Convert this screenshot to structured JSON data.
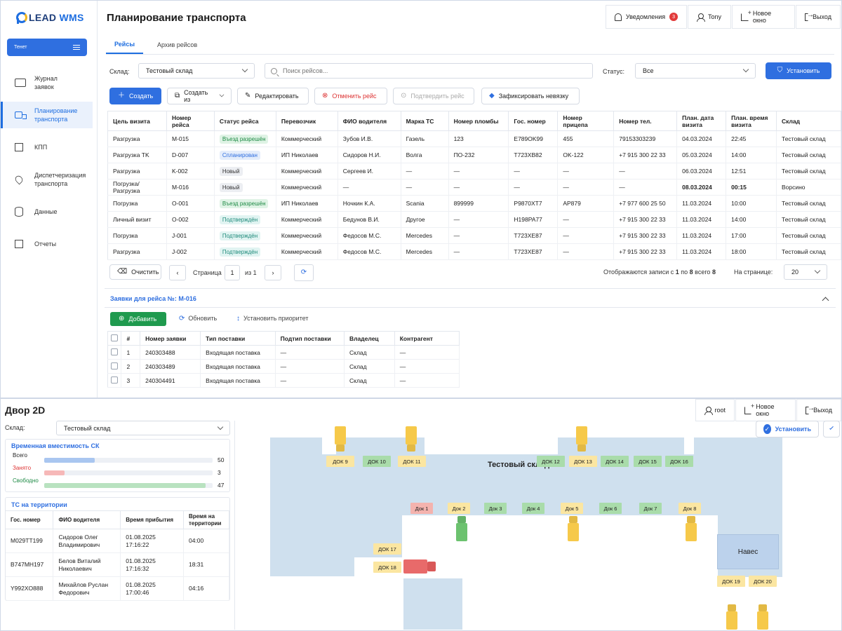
{
  "top": {
    "logo": {
      "part1": "LEAD ",
      "part2": "WMS"
    },
    "tenant": "Тенет",
    "nav": [
      {
        "label1": "Журнал",
        "label2": "заявок",
        "icon": "folder-icon"
      },
      {
        "label1": "Планирование",
        "label2": "транспорта",
        "icon": "truck-icon"
      },
      {
        "label1": "КПП",
        "label2": "",
        "icon": "gate-icon"
      },
      {
        "label1": "Диспетчеризация",
        "label2": "транспорта",
        "icon": "map-pin-icon"
      },
      {
        "label1": "Данные",
        "label2": "",
        "icon": "database-icon"
      },
      {
        "label1": "Отчеты",
        "label2": "",
        "icon": "report-icon"
      }
    ],
    "title": "Планирование транспорта",
    "header": {
      "notifications": "Уведомления",
      "notif_count": "3",
      "user": "Tony",
      "new_window": "Новое окно",
      "exit": "Выход"
    },
    "tabs": [
      "Рейсы",
      "Архив рейсов"
    ],
    "filters": {
      "warehouse_label": "Склад:",
      "warehouse": "Тестовый склад",
      "search_placeholder": "Поиск рейсов...",
      "status_label": "Статус:",
      "status": "Все",
      "apply": "Установить"
    },
    "toolbar": {
      "create": "Создать",
      "create_from": "Создать из",
      "edit": "Редактировать",
      "cancel": "Отменить рейс",
      "confirm": "Подтвердить рейс",
      "fix": "Зафиксировать невязку"
    },
    "trips": {
      "columns": [
        "Цель визита",
        "Номер рейса",
        "Статус рейса",
        "Перевозчик",
        "ФИО водителя",
        "Марка ТС",
        "Номер пломбы",
        "Гос. номер",
        "Номер прицепа",
        "Номер тел.",
        "План. дата визита",
        "План. время визита",
        "Склад"
      ],
      "rows": [
        [
          "Разгрузка",
          "M-015",
          "Въезд разрешён",
          "Коммерческий",
          "Зубов И.В.",
          "Газель",
          "123",
          "E789OK99",
          "455",
          "79153303239",
          "04.03.2024",
          "22:45",
          "Тестовый склад"
        ],
        [
          "Разгрузка TK",
          "D-007",
          "Спланирован",
          "ИП Николаев",
          "Сидоров Н.И.",
          "Волга",
          "ПО-232",
          "T723XB82",
          "OK-122",
          "+7 915 300 22 33",
          "05.03.2024",
          "14:00",
          "Тестовый склад"
        ],
        [
          "Разгрузка",
          "K-002",
          "Новый",
          "Коммерческий",
          "Сергеев И.",
          "—",
          "—",
          "—",
          "—",
          "—",
          "06.03.2024",
          "12:51",
          "Тестовый склад"
        ],
        [
          "Погрузка/ Разгрузка",
          "M-016",
          "Новый",
          "Коммерческий",
          "—",
          "—",
          "—",
          "—",
          "—",
          "—",
          "08.03.2024",
          "00:15",
          "Ворсино"
        ],
        [
          "Погрузка",
          "O-001",
          "Въезд разрешён",
          "ИП Николаев",
          "Ночкин К.А.",
          "Scania",
          "899999",
          "P9870XT7",
          "AP879",
          "+7 977 600 25 50",
          "11.03.2024",
          "10:00",
          "Тестовый склад"
        ],
        [
          "Личный визит",
          "O-002",
          "Подтверждён",
          "Коммерческий",
          "Бедунов В.И.",
          "Другое",
          "—",
          "H198PA77",
          "—",
          "+7 915 300 22 33",
          "11.03.2024",
          "14:00",
          "Тестовый склад"
        ],
        [
          "Погрузка",
          "J-001",
          "Подтверждён",
          "Коммерческий",
          "Федосов М.С.",
          "Mercedes",
          "—",
          "T723XE87",
          "—",
          "+7 915 300 22 33",
          "11.03.2024",
          "17:00",
          "Тестовый склад"
        ],
        [
          "Разгрузка",
          "J-002",
          "Подтверждён",
          "Коммерческий",
          "Федосов М.С.",
          "Mercedes",
          "—",
          "T723XE87",
          "—",
          "+7 915 300 22 33",
          "11.03.2024",
          "18:00",
          "Тестовый склад"
        ]
      ]
    },
    "pager": {
      "clear": "Очистить",
      "page_label": "Страница",
      "page": "1",
      "of": "из 1",
      "summary_a": "Отображаются записи с ",
      "from": "1",
      "summary_b": " по ",
      "to": "8",
      "summary_c": " всего ",
      "total": "8",
      "per_page_label": "На странице:",
      "per_page": "20"
    },
    "requests": {
      "title": "Заявки для рейса №: M-016",
      "add": "Добавить",
      "refresh": "Обновить",
      "priority": "Установить приоритет",
      "columns": [
        "#",
        "Номер заявки",
        "Тип поставки",
        "Подтип поставки",
        "Владелец",
        "Контрагент"
      ],
      "rows": [
        [
          "1",
          "240303488",
          "Входящая поставка",
          "—",
          "Склад",
          "—"
        ],
        [
          "2",
          "240303489",
          "Входящая поставка",
          "—",
          "Склад",
          "—"
        ],
        [
          "3",
          "240304491",
          "Входящая поставка",
          "—",
          "Склад",
          "—"
        ]
      ]
    }
  },
  "bottom": {
    "title": "Двор 2D",
    "header": {
      "user": "root",
      "new_window": "Новое окно",
      "exit": "Выход"
    },
    "warehouse_label": "Склад:",
    "warehouse": "Тестовый склад",
    "capacity": {
      "title": "Временная вместимость СК",
      "rows": [
        {
          "label": "Всего",
          "value": "50",
          "fraction": 0.3,
          "color": "#a9c6f0",
          "label_color": "#222"
        },
        {
          "label": "Занято",
          "value": "3",
          "fraction": 0.12,
          "color": "#f6b8b8",
          "label_color": "#d33"
        },
        {
          "label": "Свободно",
          "value": "47",
          "fraction": 0.96,
          "color": "#b9e2c0",
          "label_color": "#1e8a45"
        }
      ]
    },
    "vehicles": {
      "title": "ТС на территории",
      "columns": [
        "Гос. номер",
        "ФИО водителя",
        "Время прибытия",
        "Время на территории"
      ],
      "rows": [
        [
          "M029TT199",
          "Сидоров Олег Владимирович",
          "01.08.2025 17:16:22",
          "04:00"
        ],
        [
          "B747MH197",
          "Белов Виталий Николаевич",
          "01.08.2025 17:16:32",
          "18:31"
        ],
        [
          "Y992XO888",
          "Михайлов Руслан Федорович",
          "01.08.2025 17:00:46",
          "04:16"
        ]
      ]
    },
    "apply": "Установить",
    "map": {
      "warehouse_name": "Тестовый склад",
      "canopy": "Навес",
      "docks": [
        {
          "label": "ДОК 9",
          "state": "yellow"
        },
        {
          "label": "ДОК 10",
          "state": "green"
        },
        {
          "label": "ДОК 11",
          "state": "yellow"
        },
        {
          "label": "ДОК 12",
          "state": "green"
        },
        {
          "label": "ДОК 13",
          "state": "yellow"
        },
        {
          "label": "ДОК 14",
          "state": "green"
        },
        {
          "label": "ДОК 15",
          "state": "green"
        },
        {
          "label": "ДОК 16",
          "state": "green"
        },
        {
          "label": "Док 1",
          "state": "red"
        },
        {
          "label": "Док 2",
          "state": "yellow"
        },
        {
          "label": "Док 3",
          "state": "green"
        },
        {
          "label": "Док 4",
          "state": "green"
        },
        {
          "label": "Док 5",
          "state": "yellow"
        },
        {
          "label": "Док 6",
          "state": "green"
        },
        {
          "label": "Док 7",
          "state": "green"
        },
        {
          "label": "Док 8",
          "state": "yellow"
        },
        {
          "label": "ДОК 17",
          "state": "yellow"
        },
        {
          "label": "ДОК 18",
          "state": "yellow"
        },
        {
          "label": "ДОК 19",
          "state": "yellow"
        },
        {
          "label": "ДОК 20",
          "state": "yellow"
        }
      ]
    }
  }
}
